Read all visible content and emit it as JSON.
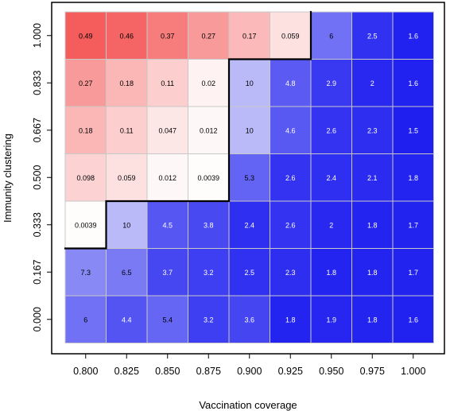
{
  "chart_data": {
    "type": "heatmap",
    "xlabel": "Vaccination coverage",
    "ylabel": "Immunity clustering",
    "x": [
      "0.800",
      "0.825",
      "0.850",
      "0.875",
      "0.900",
      "0.925",
      "0.950",
      "0.975",
      "1.000"
    ],
    "y": [
      "1.000",
      "0.833",
      "0.667",
      "0.500",
      "0.333",
      "0.167",
      "0.000"
    ],
    "values": [
      [
        "0.49",
        "0.46",
        "0.37",
        "0.27",
        "0.17",
        "0.059",
        "6",
        "2.5",
        "1.6"
      ],
      [
        "0.27",
        "0.18",
        "0.11",
        "0.02",
        "10",
        "4.8",
        "2.9",
        "2",
        "1.6"
      ],
      [
        "0.18",
        "0.11",
        "0.047",
        "0.012",
        "10",
        "4.6",
        "2.6",
        "2.3",
        "1.5"
      ],
      [
        "0.098",
        "0.059",
        "0.012",
        "0.0039",
        "5.3",
        "2.6",
        "2.4",
        "2.1",
        "1.8"
      ],
      [
        "0.0039",
        "10",
        "4.5",
        "3.8",
        "2.4",
        "2.6",
        "2",
        "1.8",
        "1.7"
      ],
      [
        "7.3",
        "6.5",
        "3.7",
        "3.2",
        "2.5",
        "2.3",
        "1.8",
        "1.8",
        "1.7"
      ],
      [
        "6",
        "4.4",
        "5.4",
        "3.2",
        "3.6",
        "1.8",
        "1.9",
        "1.8",
        "1.6"
      ]
    ],
    "cell_color": [
      [
        "red",
        "red",
        "red",
        "red",
        "red",
        "red",
        "blue",
        "blue",
        "blue"
      ],
      [
        "red",
        "red",
        "red",
        "red",
        "blue",
        "blue",
        "blue",
        "blue",
        "blue"
      ],
      [
        "red",
        "red",
        "red",
        "red",
        "blue",
        "blue",
        "blue",
        "blue",
        "blue"
      ],
      [
        "red",
        "red",
        "red",
        "red",
        "blue",
        "blue",
        "blue",
        "blue",
        "blue"
      ],
      [
        "red",
        "blue",
        "blue",
        "blue",
        "blue",
        "blue",
        "blue",
        "blue",
        "blue"
      ],
      [
        "blue",
        "blue",
        "blue",
        "blue",
        "blue",
        "blue",
        "blue",
        "blue",
        "blue"
      ],
      [
        "blue",
        "blue",
        "blue",
        "blue",
        "blue",
        "blue",
        "blue",
        "blue",
        "blue"
      ]
    ],
    "colors": {
      "high_red": "#f55a5a",
      "low": "#ffffff",
      "high_blue": "#1f1ff0",
      "cell_border": "#c8c8c8",
      "boundary": "#000000"
    },
    "grid": false,
    "legend": "none"
  }
}
